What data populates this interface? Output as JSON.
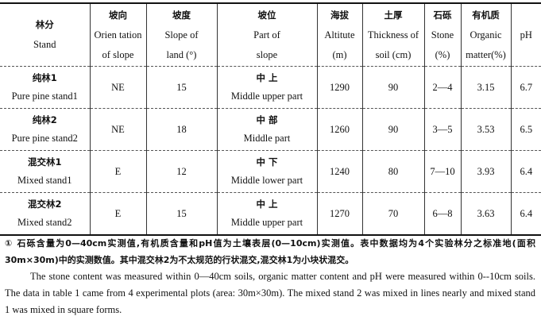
{
  "headers": [
    {
      "zh": "林分",
      "en": "Stand"
    },
    {
      "zh": "坡向",
      "en1": "Orien tation",
      "en2": "of slope"
    },
    {
      "zh": "坡度",
      "en1": "Slope of",
      "en2": "land (°)"
    },
    {
      "zh": "坡位",
      "en1": "Part of",
      "en2": "slope"
    },
    {
      "zh": "海拔",
      "en1": "Altitute",
      "en2": "(m)"
    },
    {
      "zh": "土厚",
      "en1": "Thickness of",
      "en2": "soil (cm)"
    },
    {
      "zh": "石砾",
      "en1": "Stone",
      "en2": "(%)"
    },
    {
      "zh": "有机质",
      "en1": "Organic",
      "en2": "matter(%)"
    },
    {
      "en": "pH"
    }
  ],
  "rows": [
    {
      "stand_zh": "纯林1",
      "stand_en": "Pure pine stand1",
      "orientation": "NE",
      "slope": "15",
      "part_zh": "中 上",
      "part_en": "Middle upper part",
      "altitude": "1290",
      "thickness": "90",
      "stone": "2—4",
      "organic": "3.15",
      "ph": "6.7"
    },
    {
      "stand_zh": "纯林2",
      "stand_en": "Pure pine stand2",
      "orientation": "NE",
      "slope": "18",
      "part_zh": "中 部",
      "part_en": "Middle part",
      "altitude": "1260",
      "thickness": "90",
      "stone": "3—5",
      "organic": "3.53",
      "ph": "6.5"
    },
    {
      "stand_zh": "混交林1",
      "stand_en": "Mixed stand1",
      "orientation": "E",
      "slope": "12",
      "part_zh": "中 下",
      "part_en": "Middle lower part",
      "altitude": "1240",
      "thickness": "80",
      "stone": "7—10",
      "organic": "3.93",
      "ph": "6.4"
    },
    {
      "stand_zh": "混交林2",
      "stand_en": "Mixed stand2",
      "orientation": "E",
      "slope": "15",
      "part_zh": "中 上",
      "part_en": "Middle upper part",
      "altitude": "1270",
      "thickness": "70",
      "stone": "6—8",
      "organic": "3.63",
      "ph": "6.4"
    }
  ],
  "notes": {
    "zh": "① 石砾含量为0—40cm实测值,有机质含量和pH值为土壤表层(0—10cm)实测值。表中数据均为4个实验林分之标准地(面积30m×30m)中的实测数值。其中混交林2为不太规范的行状混交,混交林1为小块状混交。",
    "en": "The stone content was measured within 0—40cm soils, organic matter content and pH were measured within 0--10cm soils. The data in table 1 came from 4 experimental plots (area: 30m×30m). The mixed stand 2 was mixed in lines nearly and mixed stand 1 was mixed in square forms."
  }
}
